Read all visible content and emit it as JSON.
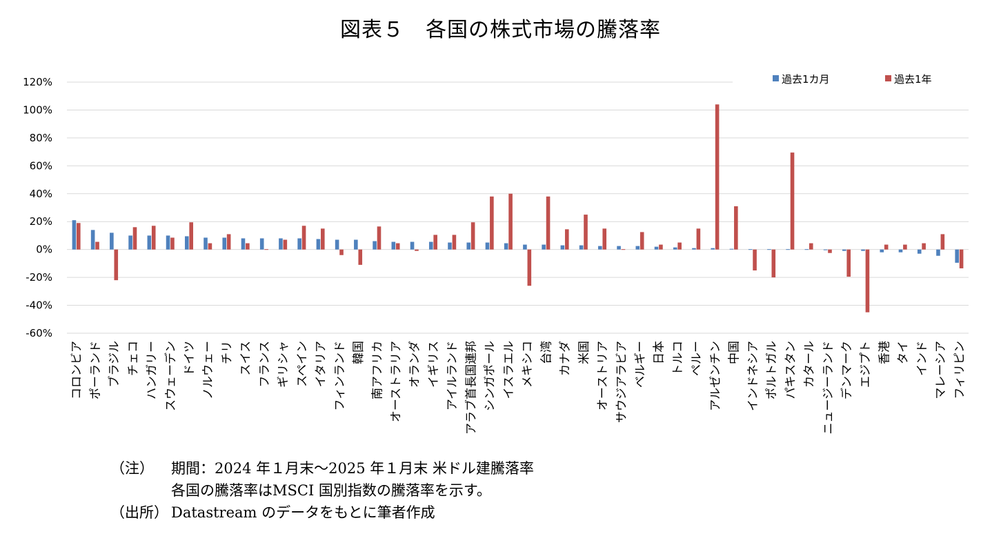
{
  "chart_data": {
    "type": "bar",
    "title": "図表５　各国の株式市場の騰落率",
    "ylim": [
      -60,
      120
    ],
    "yticks": [
      -60,
      -40,
      -20,
      0,
      20,
      40,
      60,
      80,
      100,
      120
    ],
    "ytick_suffix": "%",
    "grid": true,
    "legend_position": "top-right",
    "categories": [
      "コロンビア",
      "ポーランド",
      "ブラジル",
      "チェコ",
      "ハンガリー",
      "スウェーデン",
      "ドイツ",
      "ノルウェー",
      "チリ",
      "スイス",
      "フランス",
      "ギリシャ",
      "スペイン",
      "イタリア",
      "フィンランド",
      "韓国",
      "南アフリカ",
      "オーストラリア",
      "オランダ",
      "イギリス",
      "アイルランド",
      "アラブ首長国連邦",
      "シンガポール",
      "イスラエル",
      "メキシコ",
      "台湾",
      "カナダ",
      "米国",
      "オーストリア",
      "サウジアラビア",
      "ベルギー",
      "日本",
      "トルコ",
      "ペルー",
      "アルゼンチン",
      "中国",
      "インドネシア",
      "ポルトガル",
      "パキスタン",
      "カタール",
      "ニュージーランド",
      "デンマーク",
      "エジプト",
      "香港",
      "タイ",
      "インド",
      "マレーシア",
      "フィリピン"
    ],
    "series": [
      {
        "name": "過去1カ月",
        "color": "#4F81BD",
        "values": [
          21,
          14,
          12,
          10,
          10,
          10,
          9.5,
          8.5,
          8.5,
          8,
          8,
          8,
          8,
          7.5,
          7,
          7,
          6,
          5.5,
          5.5,
          5.5,
          5,
          5,
          5,
          4.5,
          3.5,
          3.5,
          3,
          3,
          2.5,
          2.5,
          2.5,
          2,
          1.5,
          1,
          1,
          0.5,
          0,
          0,
          0,
          0,
          -0.5,
          -1,
          -1,
          -2,
          -2,
          -3,
          -4.5,
          -9.5
        ]
      },
      {
        "name": "過去1年",
        "color": "#C0504D",
        "values": [
          19,
          5.5,
          -22,
          16,
          17,
          8.5,
          19.5,
          4.5,
          11,
          4.5,
          0,
          7,
          17,
          15,
          -4,
          -11,
          16.5,
          4.5,
          -1,
          10.5,
          10.5,
          19.5,
          38,
          40,
          -26,
          38,
          14.5,
          25,
          15,
          0,
          12.5,
          3.5,
          5,
          15,
          104,
          31,
          -15,
          -20,
          69.5,
          4.5,
          -2.5,
          -19.5,
          -45,
          3.5,
          3.5,
          4.5,
          11,
          -13.5
        ]
      }
    ]
  },
  "notes": [
    {
      "label": "（注）",
      "text": "期間：2024 年１月末～2025 年１月末 米ドル建騰落率"
    },
    {
      "label": "",
      "text": "各国の騰落率はMSCI 国別指数の騰落率を示す。"
    },
    {
      "label": "（出所）",
      "text": "Datastream のデータをもとに筆者作成"
    }
  ]
}
